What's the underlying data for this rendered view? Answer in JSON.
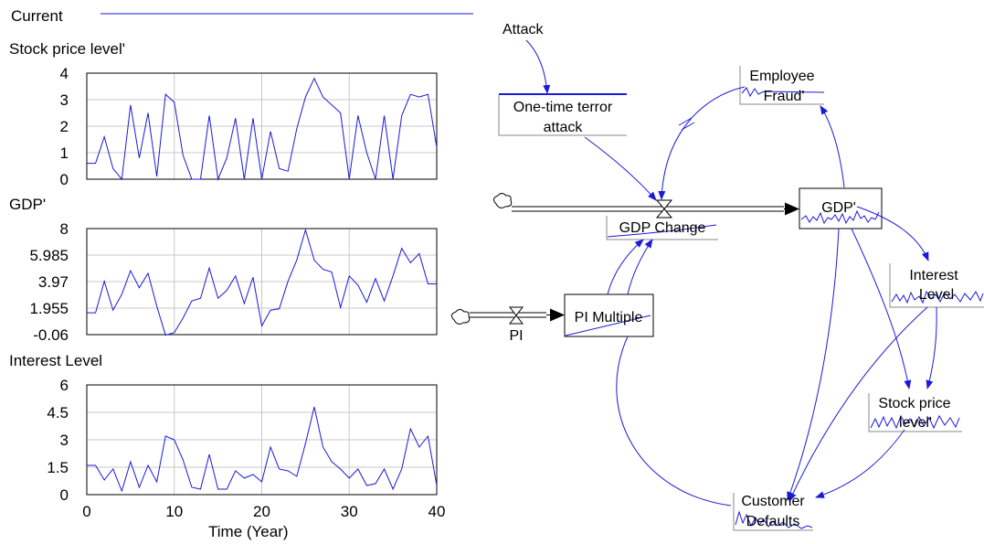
{
  "legend": {
    "label": "Current",
    "color": "#1a1adb"
  },
  "colors": {
    "line": "#1a1adb",
    "grid": "#c8c8c8",
    "axis": "#000000",
    "pipe": "#000000"
  },
  "time_axis": {
    "label": "Time (Year)",
    "ticks": [
      "0",
      "10",
      "20",
      "30",
      "40"
    ]
  },
  "chart_data": [
    {
      "type": "line",
      "title": "Stock price level'",
      "xlim": [
        0,
        40
      ],
      "ylim": [
        0,
        4
      ],
      "yticks": [
        "4",
        "3",
        "2",
        "1",
        "0"
      ],
      "grid": true,
      "x": [
        0,
        1,
        2,
        3,
        4,
        5,
        6,
        7,
        8,
        9,
        10,
        11,
        12,
        13,
        14,
        15,
        16,
        17,
        18,
        19,
        20,
        21,
        22,
        23,
        24,
        25,
        26,
        27,
        28,
        29,
        30,
        31,
        32,
        33,
        34,
        35,
        36,
        37,
        38,
        39,
        40
      ],
      "series": [
        {
          "values": [
            0.6,
            0.6,
            1.6,
            0.4,
            0.0,
            2.8,
            0.8,
            2.5,
            0.1,
            3.2,
            2.9,
            0.9,
            0.0,
            0.0,
            2.4,
            0.0,
            0.8,
            2.3,
            0.0,
            2.3,
            0.0,
            1.8,
            0.4,
            0.3,
            1.9,
            3.1,
            3.8,
            3.1,
            2.8,
            2.5,
            0.0,
            2.4,
            1.0,
            0.0,
            2.4,
            0.0,
            2.4,
            3.2,
            3.1,
            3.2,
            1.2
          ]
        }
      ]
    },
    {
      "type": "line",
      "title": "GDP'",
      "xlim": [
        0,
        40
      ],
      "ylim": [
        -0.06,
        8
      ],
      "yticks": [
        "8",
        "5.985",
        "3.97",
        "1.955",
        "-0.06"
      ],
      "grid": true,
      "x": [
        0,
        1,
        2,
        3,
        4,
        5,
        6,
        7,
        8,
        9,
        10,
        11,
        12,
        13,
        14,
        15,
        16,
        17,
        18,
        19,
        20,
        21,
        22,
        23,
        24,
        25,
        26,
        27,
        28,
        29,
        30,
        31,
        32,
        33,
        34,
        35,
        36,
        37,
        38,
        39,
        40
      ],
      "series": [
        {
          "values": [
            1.6,
            1.6,
            4.0,
            1.8,
            3.0,
            4.8,
            3.5,
            4.6,
            2.1,
            -0.1,
            0.1,
            1.2,
            2.5,
            2.7,
            5.0,
            2.7,
            3.3,
            4.4,
            2.3,
            4.3,
            0.6,
            1.8,
            1.9,
            4.0,
            5.6,
            7.9,
            5.6,
            4.9,
            4.7,
            2.0,
            4.4,
            3.7,
            2.4,
            4.2,
            2.5,
            4.4,
            6.5,
            5.4,
            6.1,
            3.8,
            3.8
          ]
        }
      ]
    },
    {
      "type": "line",
      "title": "Interest Level",
      "xlim": [
        0,
        40
      ],
      "ylim": [
        0,
        6
      ],
      "yticks": [
        "6",
        "4.5",
        "3",
        "1.5",
        "0"
      ],
      "grid": true,
      "x": [
        0,
        1,
        2,
        3,
        4,
        5,
        6,
        7,
        8,
        9,
        10,
        11,
        12,
        13,
        14,
        15,
        16,
        17,
        18,
        19,
        20,
        21,
        22,
        23,
        24,
        25,
        26,
        27,
        28,
        29,
        30,
        31,
        32,
        33,
        34,
        35,
        36,
        37,
        38,
        39,
        40
      ],
      "series": [
        {
          "values": [
            1.6,
            1.6,
            0.8,
            1.4,
            0.2,
            1.8,
            0.4,
            1.6,
            0.7,
            3.2,
            3.0,
            1.9,
            0.4,
            0.3,
            2.2,
            0.3,
            0.3,
            1.3,
            0.9,
            1.1,
            0.7,
            2.6,
            1.4,
            1.3,
            1.0,
            2.8,
            4.8,
            2.6,
            1.8,
            1.4,
            0.9,
            1.4,
            0.5,
            0.6,
            1.4,
            0.3,
            1.4,
            3.6,
            2.6,
            3.2,
            0.5
          ]
        }
      ]
    }
  ],
  "diagram": {
    "nodes": {
      "attack": "Attack",
      "terror": "One-time terror attack",
      "terror_line1": "One-time terror",
      "terror_line2": "attack",
      "employee_line1": "Employee",
      "employee_line2": "Fraud'",
      "gdp_change": "GDP Change",
      "gdp": "GDP'",
      "interest_line1": "Interest",
      "interest_line2": "Level",
      "pi_multiple": "PI Multiple",
      "pi": "PI",
      "stock_line1": "Stock price",
      "stock_line2": "level'",
      "customer_line1": "Customer",
      "customer_line2": "Defaults"
    }
  }
}
